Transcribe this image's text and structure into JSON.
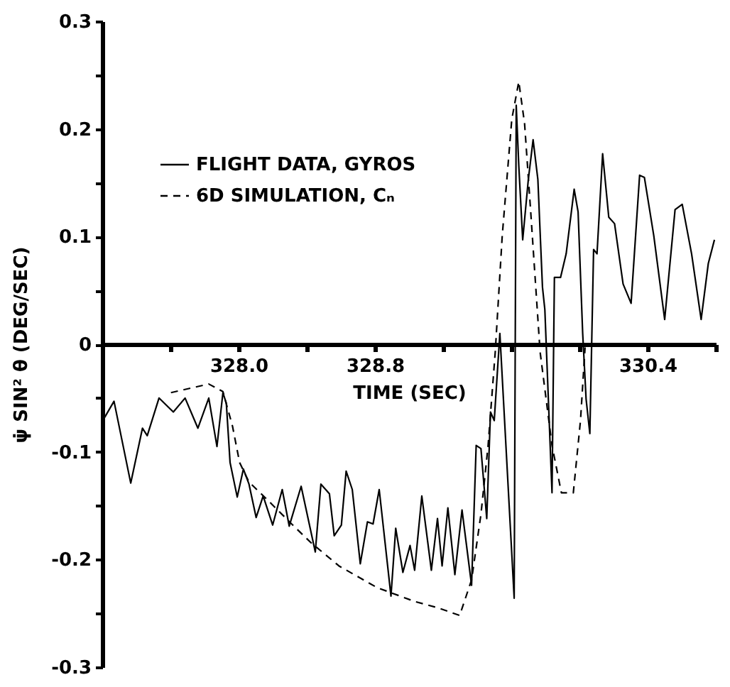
{
  "chart_data": {
    "type": "line",
    "xlabel": "TIME (SEC)",
    "ylabel": "ψ̇ SIN² θ (DEG/SEC)",
    "xlim": [
      327.2,
      330.8
    ],
    "ylim": [
      -0.3,
      0.3
    ],
    "xticks": [
      {
        "value": 327.6,
        "label": null
      },
      {
        "value": 328.0,
        "label": "328.0"
      },
      {
        "value": 328.4,
        "label": null
      },
      {
        "value": 328.8,
        "label": "328.8"
      },
      {
        "value": 329.2,
        "label": null
      },
      {
        "value": 329.6,
        "label": null
      },
      {
        "value": 330.0,
        "label": null
      },
      {
        "value": 330.4,
        "label": "330.4"
      },
      {
        "value": 330.8,
        "label": null
      }
    ],
    "yticks": [
      -0.3,
      {
        "value": -0.25,
        "label": null
      },
      -0.2,
      {
        "value": -0.15,
        "label": null
      },
      -0.1,
      {
        "value": -0.05,
        "label": null
      },
      0,
      {
        "value": 0.05,
        "label": null
      },
      0.1,
      {
        "value": 0.15,
        "label": null
      },
      0.2,
      {
        "value": 0.25,
        "label": null
      },
      0.3
    ],
    "legend": "top left",
    "series": [
      {
        "name": "FLIGHT DATA, GYROS",
        "color": "#000000",
        "line_style": "solid",
        "x": [
          327.214,
          327.269,
          327.367,
          327.436,
          327.464,
          327.533,
          327.617,
          327.686,
          327.761,
          327.825,
          327.873,
          327.908,
          327.928,
          327.95,
          327.992,
          328.028,
          328.061,
          328.103,
          328.144,
          328.2,
          328.256,
          328.297,
          328.367,
          328.45,
          328.483,
          328.533,
          328.561,
          328.603,
          328.631,
          328.667,
          328.714,
          328.756,
          328.789,
          328.825,
          328.894,
          328.922,
          328.964,
          329.006,
          329.033,
          329.075,
          329.131,
          329.167,
          329.194,
          329.228,
          329.269,
          329.311,
          329.367,
          329.394,
          329.422,
          329.456,
          329.478,
          329.5,
          329.533,
          329.617,
          329.629,
          329.644,
          329.667,
          329.7,
          329.728,
          329.756,
          329.783,
          329.797,
          329.839,
          329.853,
          329.889,
          329.922,
          329.969,
          329.992,
          330.019,
          330.039,
          330.061,
          330.083,
          330.103,
          330.136,
          330.172,
          330.206,
          330.256,
          330.303,
          330.353,
          330.381,
          330.436,
          330.5,
          330.561,
          330.603,
          330.658,
          330.714,
          330.756,
          330.792
        ],
        "values": [
          -0.068,
          -0.053,
          -0.129,
          -0.078,
          -0.085,
          -0.05,
          -0.063,
          -0.05,
          -0.078,
          -0.05,
          -0.095,
          -0.045,
          -0.055,
          -0.11,
          -0.142,
          -0.116,
          -0.13,
          -0.161,
          -0.141,
          -0.168,
          -0.135,
          -0.169,
          -0.132,
          -0.193,
          -0.13,
          -0.139,
          -0.178,
          -0.168,
          -0.118,
          -0.135,
          -0.204,
          -0.165,
          -0.167,
          -0.135,
          -0.234,
          -0.171,
          -0.212,
          -0.187,
          -0.21,
          -0.141,
          -0.21,
          -0.162,
          -0.206,
          -0.152,
          -0.214,
          -0.154,
          -0.224,
          -0.094,
          -0.097,
          -0.162,
          -0.063,
          -0.071,
          0.01,
          -0.236,
          0.222,
          0.166,
          0.097,
          0.153,
          0.19,
          0.153,
          0.053,
          0.032,
          -0.138,
          0.062,
          0.062,
          0.084,
          0.144,
          0.123,
          0.01,
          -0.051,
          -0.083,
          0.088,
          0.084,
          0.177,
          0.118,
          0.112,
          0.056,
          0.038,
          0.157,
          0.155,
          0.101,
          0.023,
          0.125,
          0.13,
          0.084,
          0.023,
          0.075,
          0.097
        ]
      },
      {
        "name": "6D SIMULATION, Cₙ",
        "color": "#000000",
        "line_style": "dashed",
        "x": [
          327.603,
          327.825,
          327.908,
          327.964,
          328.006,
          328.061,
          328.172,
          328.311,
          328.422,
          328.589,
          328.811,
          329.033,
          329.172,
          329.297,
          329.367,
          329.422,
          329.464,
          329.506,
          329.547,
          329.603,
          329.644,
          329.678,
          329.714,
          329.769,
          329.839,
          329.894,
          329.964,
          330.006,
          330.033
        ],
        "values": [
          -0.045,
          -0.037,
          -0.044,
          -0.076,
          -0.11,
          -0.128,
          -0.145,
          -0.167,
          -0.184,
          -0.206,
          -0.226,
          -0.239,
          -0.245,
          -0.252,
          -0.219,
          -0.158,
          -0.094,
          -0.007,
          0.101,
          0.209,
          0.244,
          0.205,
          0.123,
          -0.007,
          -0.094,
          -0.138,
          -0.138,
          -0.071,
          -0.003
        ]
      }
    ]
  }
}
